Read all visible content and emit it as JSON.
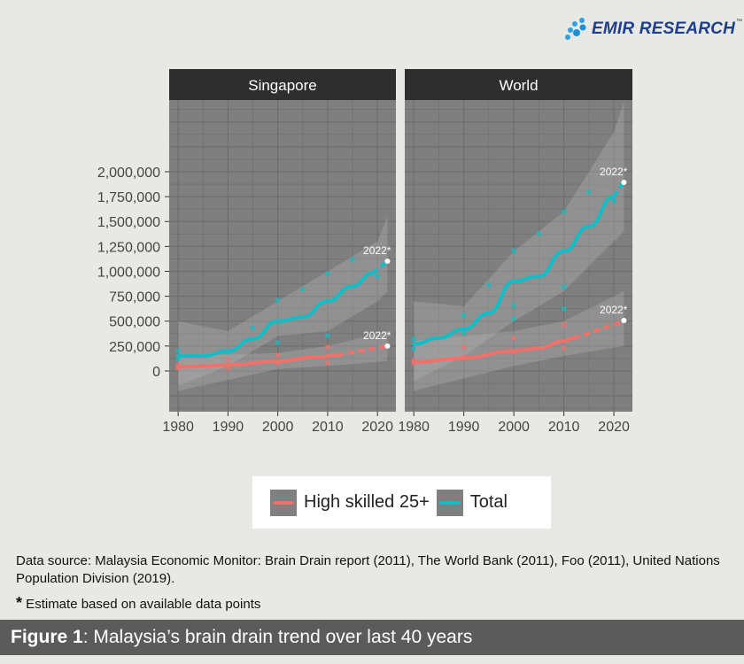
{
  "logo": {
    "text": "EMIR RESEARCH",
    "tm": "™"
  },
  "chart_data": {
    "type": "line",
    "facets": [
      "Singapore",
      "World"
    ],
    "x_ticks": [
      1980,
      1990,
      2000,
      2010,
      2020
    ],
    "y_ticks": [
      "0",
      "250,000",
      "500,000",
      "750,000",
      "1,000,000",
      "1,250,000",
      "1,500,000",
      "1,750,000",
      "2,000,000"
    ],
    "y_tick_values": [
      0,
      250000,
      500000,
      750000,
      1000000,
      1250000,
      1500000,
      1750000,
      2000000
    ],
    "xlim": [
      1978.2,
      2023.7
    ],
    "ylim": [
      -409000,
      2720000
    ],
    "grid": true,
    "legend_position": "bottom",
    "colors": {
      "High skilled 25+": "#f0716a",
      "Total": "#13bdc6",
      "panel": "#7f7f7f",
      "strip": "#2e2e2e"
    },
    "annotation": "2022*",
    "series": [
      {
        "facet": "Singapore",
        "name": "Total",
        "points": [
          [
            1980,
            204000
          ],
          [
            1980,
            120000
          ],
          [
            1990,
            190000
          ],
          [
            1995,
            435000
          ],
          [
            2000,
            711000
          ],
          [
            2000,
            284000
          ],
          [
            2005,
            818000
          ],
          [
            2010,
            978000
          ],
          [
            2010,
            355000
          ],
          [
            2015,
            1120000
          ],
          [
            2020,
            951000
          ]
        ],
        "smooth": [
          [
            1980,
            150000
          ],
          [
            1985,
            150000
          ],
          [
            1990,
            200000
          ],
          [
            1995,
            320000
          ],
          [
            2000,
            500000
          ],
          [
            2005,
            540000
          ],
          [
            2010,
            700000
          ],
          [
            2015,
            850000
          ],
          [
            2019,
            980000
          ]
        ],
        "projection": [
          [
            2019,
            980000
          ],
          [
            2022,
            1100000
          ]
        ],
        "estimate_2022": 1102000,
        "ribbon_upper": [
          [
            1980,
            500000
          ],
          [
            1990,
            400000
          ],
          [
            2000,
            700000
          ],
          [
            2010,
            1000000
          ],
          [
            2020,
            1300000
          ],
          [
            2022,
            1550000
          ]
        ],
        "ribbon_lower": [
          [
            1980,
            -150000
          ],
          [
            1990,
            50000
          ],
          [
            2000,
            350000
          ],
          [
            2010,
            400000
          ],
          [
            2020,
            700000
          ],
          [
            2022,
            800000
          ]
        ]
      },
      {
        "facet": "Singapore",
        "name": "High skilled 25+",
        "points": [
          [
            1980,
            62000
          ],
          [
            1980,
            27000
          ],
          [
            1990,
            115000
          ],
          [
            1990,
            27000
          ],
          [
            2000,
            160000
          ],
          [
            2000,
            80000
          ],
          [
            2010,
            240000
          ],
          [
            2010,
            80000
          ]
        ],
        "smooth": [
          [
            1980,
            40000
          ],
          [
            1990,
            60000
          ],
          [
            2000,
            100000
          ],
          [
            2008,
            140000
          ],
          [
            2012,
            160000
          ]
        ],
        "projection": [
          [
            2012,
            160000
          ],
          [
            2022,
            250000
          ]
        ],
        "estimate_2022": 250000,
        "ribbon_upper": [
          [
            1980,
            150000
          ],
          [
            2000,
            180000
          ],
          [
            2010,
            250000
          ],
          [
            2022,
            400000
          ]
        ],
        "ribbon_lower": [
          [
            1980,
            -200000
          ],
          [
            2000,
            20000
          ],
          [
            2010,
            50000
          ],
          [
            2022,
            100000
          ]
        ]
      },
      {
        "facet": "World",
        "name": "Total",
        "points": [
          [
            1980,
            320000
          ],
          [
            1980,
            222000
          ],
          [
            1990,
            560000
          ],
          [
            1990,
            382000
          ],
          [
            1995,
            862000
          ],
          [
            2000,
            1209000
          ],
          [
            2000,
            658000
          ],
          [
            2000,
            524000
          ],
          [
            2005,
            1378000
          ],
          [
            2010,
            1600000
          ],
          [
            2010,
            844000
          ],
          [
            2010,
            622000
          ],
          [
            2015,
            1796000
          ],
          [
            2020,
            1707000
          ]
        ],
        "smooth": [
          [
            1980,
            270000
          ],
          [
            1985,
            330000
          ],
          [
            1990,
            420000
          ],
          [
            1995,
            580000
          ],
          [
            2000,
            900000
          ],
          [
            2005,
            950000
          ],
          [
            2010,
            1200000
          ],
          [
            2015,
            1450000
          ],
          [
            2020,
            1750000
          ]
        ],
        "projection": [
          [
            2020,
            1750000
          ],
          [
            2022,
            1900000
          ]
        ],
        "estimate_2022": 1893000,
        "ribbon_upper": [
          [
            1980,
            700000
          ],
          [
            1990,
            650000
          ],
          [
            2000,
            1200000
          ],
          [
            2010,
            1600000
          ],
          [
            2020,
            2400000
          ],
          [
            2022,
            2700000
          ]
        ],
        "ribbon_lower": [
          [
            1980,
            -100000
          ],
          [
            1990,
            150000
          ],
          [
            2000,
            500000
          ],
          [
            2010,
            800000
          ],
          [
            2020,
            1300000
          ],
          [
            2022,
            1400000
          ]
        ]
      },
      {
        "facet": "World",
        "name": "High skilled 25+",
        "points": [
          [
            1980,
            107000
          ],
          [
            1980,
            80000
          ],
          [
            1990,
            240000
          ],
          [
            1990,
            142000
          ],
          [
            2000,
            329000
          ],
          [
            2000,
            196000
          ],
          [
            2010,
            462000
          ],
          [
            2010,
            231000
          ]
        ],
        "smooth": [
          [
            1980,
            90000
          ],
          [
            1990,
            130000
          ],
          [
            2000,
            200000
          ],
          [
            2005,
            230000
          ],
          [
            2010,
            300000
          ],
          [
            2012,
            330000
          ]
        ],
        "projection": [
          [
            2012,
            330000
          ],
          [
            2022,
            500000
          ]
        ],
        "estimate_2022": 507000,
        "ribbon_upper": [
          [
            1980,
            300000
          ],
          [
            2000,
            400000
          ],
          [
            2010,
            500000
          ],
          [
            2022,
            800000
          ]
        ],
        "ribbon_lower": [
          [
            1980,
            -200000
          ],
          [
            2000,
            50000
          ],
          [
            2010,
            150000
          ],
          [
            2022,
            250000
          ]
        ]
      }
    ]
  },
  "legend": {
    "items": [
      {
        "label": "High skilled 25+"
      },
      {
        "label": "Total"
      }
    ]
  },
  "source": "Data source: Malaysia Economic Monitor: Brain Drain report (2011), The World Bank (2011), Foo (2011), United Nations Population Division (2019).",
  "note": {
    "mark": "*",
    "text": " Estimate based on available data points"
  },
  "figure": {
    "label": "Figure 1",
    "title": ": Malaysia’s brain drain trend over last 40 years"
  }
}
